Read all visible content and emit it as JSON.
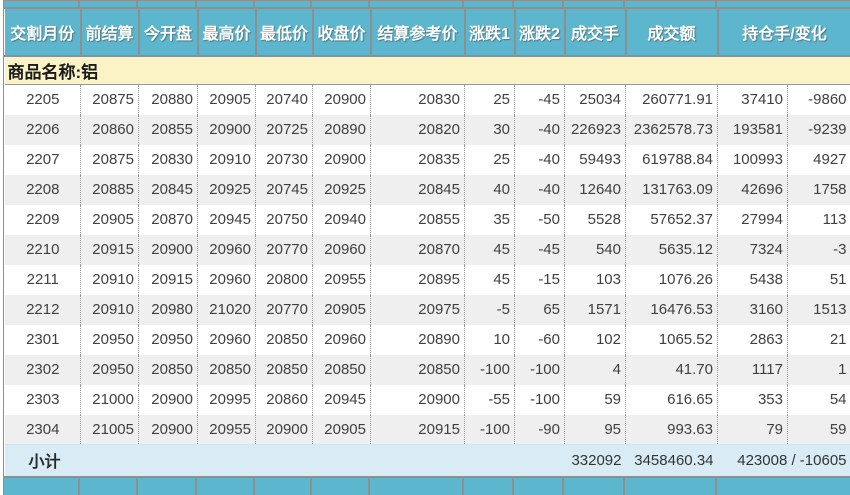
{
  "table": {
    "columns": [
      "交割月份",
      "前结算",
      "今开盘",
      "最高价",
      "最低价",
      "收盘价",
      "结算参考价",
      "涨跌1",
      "涨跌2",
      "成交手",
      "成交额",
      "持仓手/变化"
    ],
    "commodity_label": "商品名称:铝",
    "rows": [
      [
        "2205",
        "20875",
        "20880",
        "20905",
        "20740",
        "20900",
        "20830",
        "25",
        "-45",
        "25034",
        "260771.91",
        "37410",
        "-9860"
      ],
      [
        "2206",
        "20860",
        "20855",
        "20900",
        "20725",
        "20890",
        "20820",
        "30",
        "-40",
        "226923",
        "2362578.73",
        "193581",
        "-9239"
      ],
      [
        "2207",
        "20875",
        "20830",
        "20910",
        "20730",
        "20900",
        "20835",
        "25",
        "-40",
        "59493",
        "619788.84",
        "100993",
        "4927"
      ],
      [
        "2208",
        "20885",
        "20845",
        "20925",
        "20745",
        "20925",
        "20845",
        "40",
        "-40",
        "12640",
        "131763.09",
        "42696",
        "1758"
      ],
      [
        "2209",
        "20905",
        "20870",
        "20945",
        "20750",
        "20940",
        "20855",
        "35",
        "-50",
        "5528",
        "57652.37",
        "27994",
        "113"
      ],
      [
        "2210",
        "20915",
        "20900",
        "20960",
        "20770",
        "20960",
        "20870",
        "45",
        "-45",
        "540",
        "5635.12",
        "7324",
        "-3"
      ],
      [
        "2211",
        "20910",
        "20915",
        "20960",
        "20800",
        "20955",
        "20895",
        "45",
        "-15",
        "103",
        "1076.26",
        "5438",
        "51"
      ],
      [
        "2212",
        "20910",
        "20980",
        "21020",
        "20770",
        "20905",
        "20975",
        "-5",
        "65",
        "1571",
        "16476.53",
        "3160",
        "1513"
      ],
      [
        "2301",
        "20950",
        "20950",
        "20960",
        "20850",
        "20960",
        "20890",
        "10",
        "-60",
        "102",
        "1065.52",
        "2863",
        "21"
      ],
      [
        "2302",
        "20950",
        "20850",
        "20850",
        "20850",
        "20850",
        "20850",
        "-100",
        "-100",
        "4",
        "41.70",
        "1117",
        "1"
      ],
      [
        "2303",
        "21000",
        "20900",
        "20995",
        "20860",
        "20945",
        "20900",
        "-55",
        "-100",
        "59",
        "616.65",
        "353",
        "54"
      ],
      [
        "2304",
        "21005",
        "20900",
        "20955",
        "20900",
        "20905",
        "20915",
        "-100",
        "-90",
        "95",
        "993.63",
        "79",
        "59"
      ]
    ],
    "subtotal": {
      "label": "小计",
      "volume": "332092",
      "turnover": "3458460.34",
      "open_interest_change": "423008 / -10605"
    }
  },
  "colors": {
    "header-bg": "#5CB6CE",
    "header-text": "#FFFFFF",
    "commodity-bg": "#FBF3C5",
    "row-alt-bg": "#EFEFEF",
    "subtotal-bg": "#D9ECF5",
    "text": "#404040",
    "border-gray": "#8F8F8F",
    "dotted": "#9B9B9B"
  }
}
